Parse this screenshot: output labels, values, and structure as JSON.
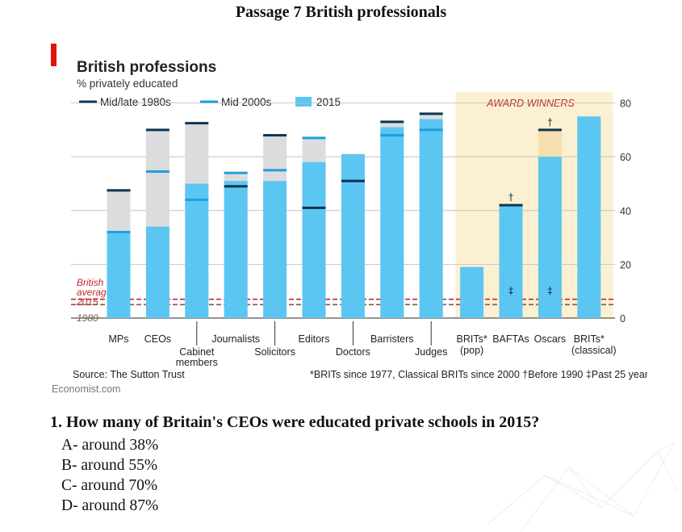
{
  "slide": {
    "title": "Passage 7 British professionals"
  },
  "colors": {
    "line_1980s": "#0d3552",
    "line_2000s": "#1e9fdc",
    "bar_2015": "#5cc6f2",
    "grey_range": "#dcdcdf",
    "award_bg": "#fbf0d1",
    "award_tan": "#f6dfae",
    "brand_red": "#e3120b",
    "avg_red": "#c0282d",
    "avg_brown": "#7a5a49"
  },
  "chart_data": {
    "type": "bar",
    "title": "British professions",
    "subtitle": "% privately educated",
    "legend": {
      "placement": "top-left",
      "items": [
        "Mid/late 1980s",
        "Mid 2000s",
        "2015"
      ]
    },
    "award_label": "AWARD WINNERS",
    "y_axis": {
      "side": "right",
      "ylim": [
        0,
        85
      ],
      "ticks": [
        "0",
        "20",
        "40",
        "60",
        "80"
      ],
      "tick_values": [
        0,
        20,
        40,
        60,
        80
      ]
    },
    "grid": true,
    "categories": [
      {
        "label": "MPs",
        "line2": "",
        "row": 1,
        "v1980": 47.5,
        "v2000": 32,
        "v2015": 32,
        "top": 47.5
      },
      {
        "label": "CEOs",
        "line2": "",
        "row": 1,
        "v1980": 70,
        "v2000": 54.5,
        "v2015": 34,
        "top": 70
      },
      {
        "label": "Cabinet",
        "line2": "members",
        "row": 2,
        "v1980": 72.5,
        "v2000": 44,
        "v2015": 50,
        "top": 72.5
      },
      {
        "label": "Journalists",
        "line2": "",
        "row": 1,
        "v1980": 49,
        "v2000": 54,
        "v2015": 51,
        "top": 54
      },
      {
        "label": "Solicitors",
        "line2": "",
        "row": 2,
        "v1980": 68,
        "v2000": 55,
        "v2015": 51,
        "top": 68
      },
      {
        "label": "Editors",
        "line2": "",
        "row": 1,
        "v1980": 41,
        "v2000": 67,
        "v2015": 58,
        "top": 67
      },
      {
        "label": "Doctors",
        "line2": "",
        "row": 2,
        "v1980": 51,
        "v2000": 51,
        "v2015": 61,
        "top": 61
      },
      {
        "label": "Barristers",
        "line2": "",
        "row": 1,
        "v1980": 73,
        "v2000": 68,
        "v2015": 71,
        "top": 73
      },
      {
        "label": "Judges",
        "line2": "",
        "row": 2,
        "v1980": 76,
        "v2000": 70,
        "v2015": 74,
        "top": 76
      }
    ],
    "award_categories": [
      {
        "label": "BRITs*",
        "line2": "(pop)",
        "value": 19,
        "marker": "",
        "inner_marker": ""
      },
      {
        "label": "BAFTAs",
        "line2": "",
        "value": 42,
        "marker": "†",
        "inner_marker": "‡"
      },
      {
        "label": "Oscars",
        "line2": "",
        "value": 60,
        "before1990": 70,
        "marker": "†",
        "inner_marker": "‡"
      },
      {
        "label": "BRITs*",
        "line2": "(classical)",
        "value": 75,
        "marker": "",
        "inner_marker": ""
      }
    ],
    "average": {
      "label_lines": [
        "British",
        "average",
        "2015"
      ],
      "value_2015": 7,
      "label_1980": "1980",
      "value_1980": 5
    },
    "source": "Source: The Sutton Trust",
    "footnote": "*BRITs since 1977, Classical BRITs since 2000   †Before 1990   ‡Past 25 years",
    "brand": "Economist.com"
  },
  "question": {
    "text": "1. How many of Britain's CEOs were educated private schools in 2015?",
    "options": [
      "A- around 38%",
      "B- around 55%",
      "C- around 70%",
      "D- around 87%"
    ]
  }
}
